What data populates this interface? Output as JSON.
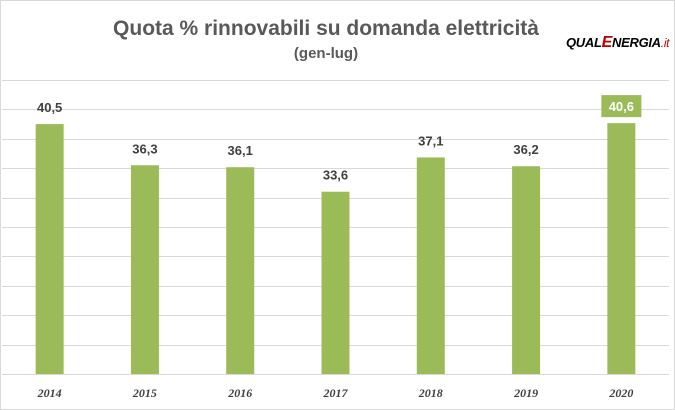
{
  "chart_data": {
    "type": "bar",
    "title": "Quota % rinnovabili su domanda elettricità",
    "subtitle": "(gen-lug)",
    "xlabel": "",
    "ylabel": "",
    "categories": [
      "2014",
      "2015",
      "2016",
      "2017",
      "2018",
      "2019",
      "2020"
    ],
    "values": [
      40.5,
      36.3,
      36.1,
      33.6,
      37.1,
      36.2,
      40.6
    ],
    "data_labels": [
      "40,5",
      "36,3",
      "36,1",
      "33,6",
      "37,1",
      "36,2",
      "40,6"
    ],
    "highlighted_category": "2020",
    "ylim": [
      15,
      45
    ],
    "y_gridline_step": 3,
    "y_tick_labels_visible": false,
    "grid": true,
    "legend": "none",
    "colors": {
      "bar": "#9bbb59",
      "gridline": "#d9d9d9",
      "highlight_label_background": "#9bbb59"
    }
  },
  "logo": {
    "prefix": "QUAL",
    "accent_letter": "E",
    "suffix": "NERGIA",
    "domain": ".it",
    "accent_color": "#c00000"
  }
}
